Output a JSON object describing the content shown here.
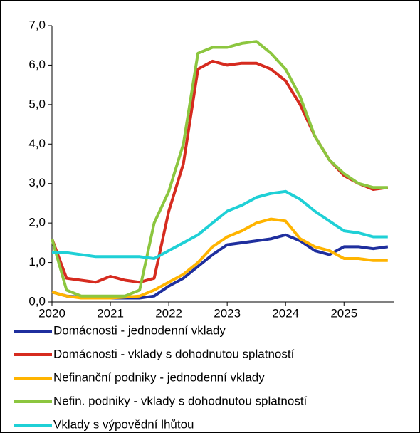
{
  "chart_data": {
    "type": "line",
    "x": [
      2020,
      2020.25,
      2020.5,
      2020.75,
      2021,
      2021.25,
      2021.5,
      2021.75,
      2022,
      2022.25,
      2022.5,
      2022.75,
      2023,
      2023.25,
      2023.5,
      2023.75,
      2024,
      2024.25,
      2024.5,
      2024.75,
      2025,
      2025.25,
      2025.5,
      2025.75
    ],
    "xlim": [
      2020,
      2025.85
    ],
    "xticks": [
      2020,
      2021,
      2022,
      2023,
      2024,
      2025
    ],
    "ylim": [
      0,
      7
    ],
    "yticks": [
      {
        "value": 0,
        "label": "0,0"
      },
      {
        "value": 1,
        "label": "1,0"
      },
      {
        "value": 2,
        "label": "2,0"
      },
      {
        "value": 3,
        "label": "3,0"
      },
      {
        "value": 4,
        "label": "4,0"
      },
      {
        "value": 5,
        "label": "5,0"
      },
      {
        "value": 6,
        "label": "6,0"
      },
      {
        "value": 7,
        "label": "7,0"
      }
    ],
    "series": [
      {
        "name": "Domácnosti - jednodenní vklady",
        "color": "#1f2f9e",
        "values": [
          0.25,
          0.15,
          0.12,
          0.1,
          0.1,
          0.1,
          0.1,
          0.15,
          0.4,
          0.6,
          0.9,
          1.2,
          1.45,
          1.5,
          1.55,
          1.6,
          1.7,
          1.55,
          1.3,
          1.2,
          1.4,
          1.4,
          1.35,
          1.4
        ]
      },
      {
        "name": "Domácnosti - vklady s dohodnutou splatností",
        "color": "#d62b1f",
        "values": [
          1.6,
          0.6,
          0.55,
          0.5,
          0.65,
          0.55,
          0.5,
          0.6,
          2.3,
          3.5,
          5.9,
          6.1,
          6.0,
          6.05,
          6.05,
          5.9,
          5.6,
          5.0,
          4.2,
          3.6,
          3.2,
          3.0,
          2.85,
          2.9
        ]
      },
      {
        "name": "Nefinanční podniky - jednodenní vklady",
        "color": "#ffb400",
        "values": [
          0.25,
          0.15,
          0.1,
          0.1,
          0.1,
          0.12,
          0.15,
          0.3,
          0.5,
          0.7,
          1.0,
          1.4,
          1.65,
          1.8,
          2.0,
          2.1,
          2.05,
          1.6,
          1.4,
          1.3,
          1.1,
          1.1,
          1.05,
          1.05
        ]
      },
      {
        "name": "Nefin. podniky - vklady s dohodnutou splatností",
        "color": "#8cc63f",
        "values": [
          1.6,
          0.3,
          0.15,
          0.15,
          0.15,
          0.15,
          0.3,
          2.0,
          2.8,
          4.0,
          6.3,
          6.45,
          6.45,
          6.55,
          6.6,
          6.3,
          5.9,
          5.2,
          4.2,
          3.6,
          3.25,
          3.0,
          2.9,
          2.9
        ]
      },
      {
        "name": "Vklady s výpovědní lhůtou",
        "color": "#1fd0d6",
        "values": [
          1.25,
          1.25,
          1.2,
          1.15,
          1.15,
          1.15,
          1.15,
          1.1,
          1.3,
          1.5,
          1.7,
          2.0,
          2.3,
          2.45,
          2.65,
          2.75,
          2.8,
          2.6,
          2.3,
          2.05,
          1.8,
          1.75,
          1.65,
          1.65
        ]
      }
    ]
  }
}
